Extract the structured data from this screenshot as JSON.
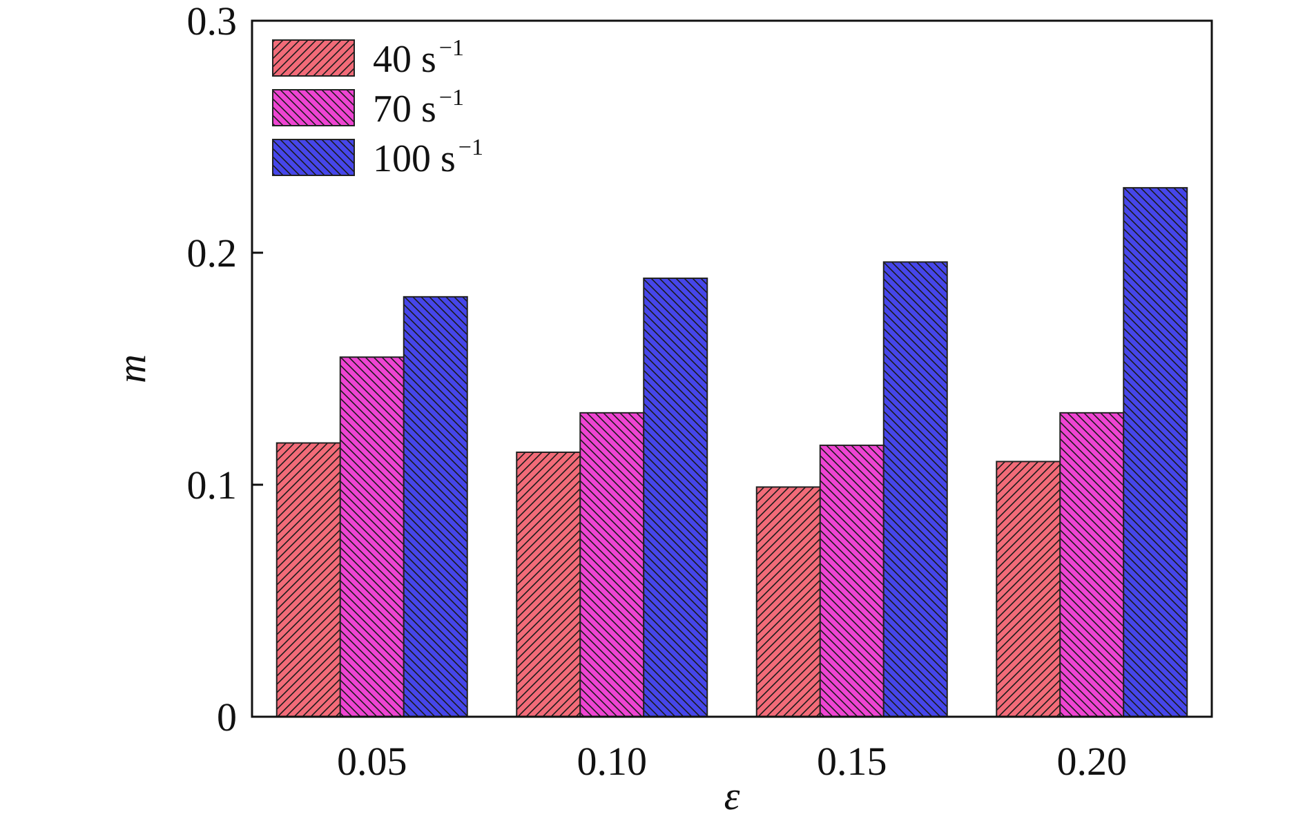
{
  "chart_data": {
    "type": "bar",
    "xlabel": "ε",
    "ylabel": "m",
    "categories": [
      "0.05",
      "0.10",
      "0.15",
      "0.20"
    ],
    "ylim": [
      0,
      0.3
    ],
    "yticks": [
      "0",
      "0.1",
      "0.2",
      "0.3"
    ],
    "series": [
      {
        "name": "40 s",
        "unit_sup": "−1",
        "color": "#f26b78",
        "hatch": "forward",
        "values": [
          0.118,
          0.114,
          0.099,
          0.11
        ]
      },
      {
        "name": "70 s",
        "unit_sup": "−1",
        "color": "#ee44d2",
        "hatch": "back",
        "values": [
          0.155,
          0.131,
          0.117,
          0.131
        ]
      },
      {
        "name": "100 s",
        "unit_sup": "−1",
        "color": "#4646ea",
        "hatch": "back",
        "values": [
          0.181,
          0.189,
          0.196,
          0.228
        ]
      }
    ],
    "legend_position": "top-left",
    "grid": false
  }
}
